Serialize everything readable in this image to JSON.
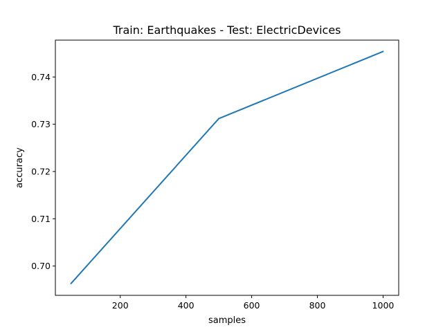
{
  "chart_data": {
    "type": "line",
    "title": "Train: Earthquakes - Test: ElectricDevices",
    "xlabel": "samples",
    "ylabel": "accuracy",
    "x": [
      50,
      500,
      1000
    ],
    "series": [
      {
        "values": [
          0.6963,
          0.7312,
          0.7454
        ],
        "color": "#1f77b4"
      }
    ],
    "xlim": [
      2.5,
      1047.5
    ],
    "ylim": [
      0.6938,
      0.7478
    ],
    "xticks": [
      200,
      400,
      600,
      800,
      1000
    ],
    "xtick_labels": [
      "200",
      "400",
      "600",
      "800",
      "1000"
    ],
    "yticks": [
      0.7,
      0.71,
      0.72,
      0.73,
      0.74
    ],
    "ytick_labels": [
      "0.70",
      "0.71",
      "0.72",
      "0.73",
      "0.74"
    ],
    "grid": false,
    "legend": "none"
  }
}
